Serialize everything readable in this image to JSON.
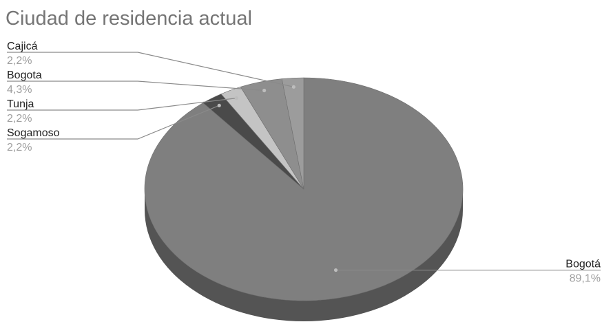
{
  "chart_data": {
    "type": "pie",
    "three_d": true,
    "title": "Ciudad de residencia actual",
    "slices": [
      {
        "label": "Bogotá",
        "value": 89.1,
        "pct_label": "89,1%",
        "color": "#7f7f7f",
        "side_color": "#545454"
      },
      {
        "label": "Sogamoso",
        "value": 2.2,
        "pct_label": "2,2%",
        "color": "#4a4a4a",
        "side_color": "#333333"
      },
      {
        "label": "Tunja",
        "value": 2.2,
        "pct_label": "2,2%",
        "color": "#c4c4c4",
        "side_color": "#9a9a9a"
      },
      {
        "label": "Bogota",
        "value": 4.3,
        "pct_label": "4,3%",
        "color": "#8e8e8e",
        "side_color": "#6a6a6a"
      },
      {
        "label": "Cajicá",
        "value": 2.2,
        "pct_label": "2,2%",
        "color": "#9c9c9c",
        "side_color": "#777777"
      }
    ],
    "legend": "none"
  }
}
